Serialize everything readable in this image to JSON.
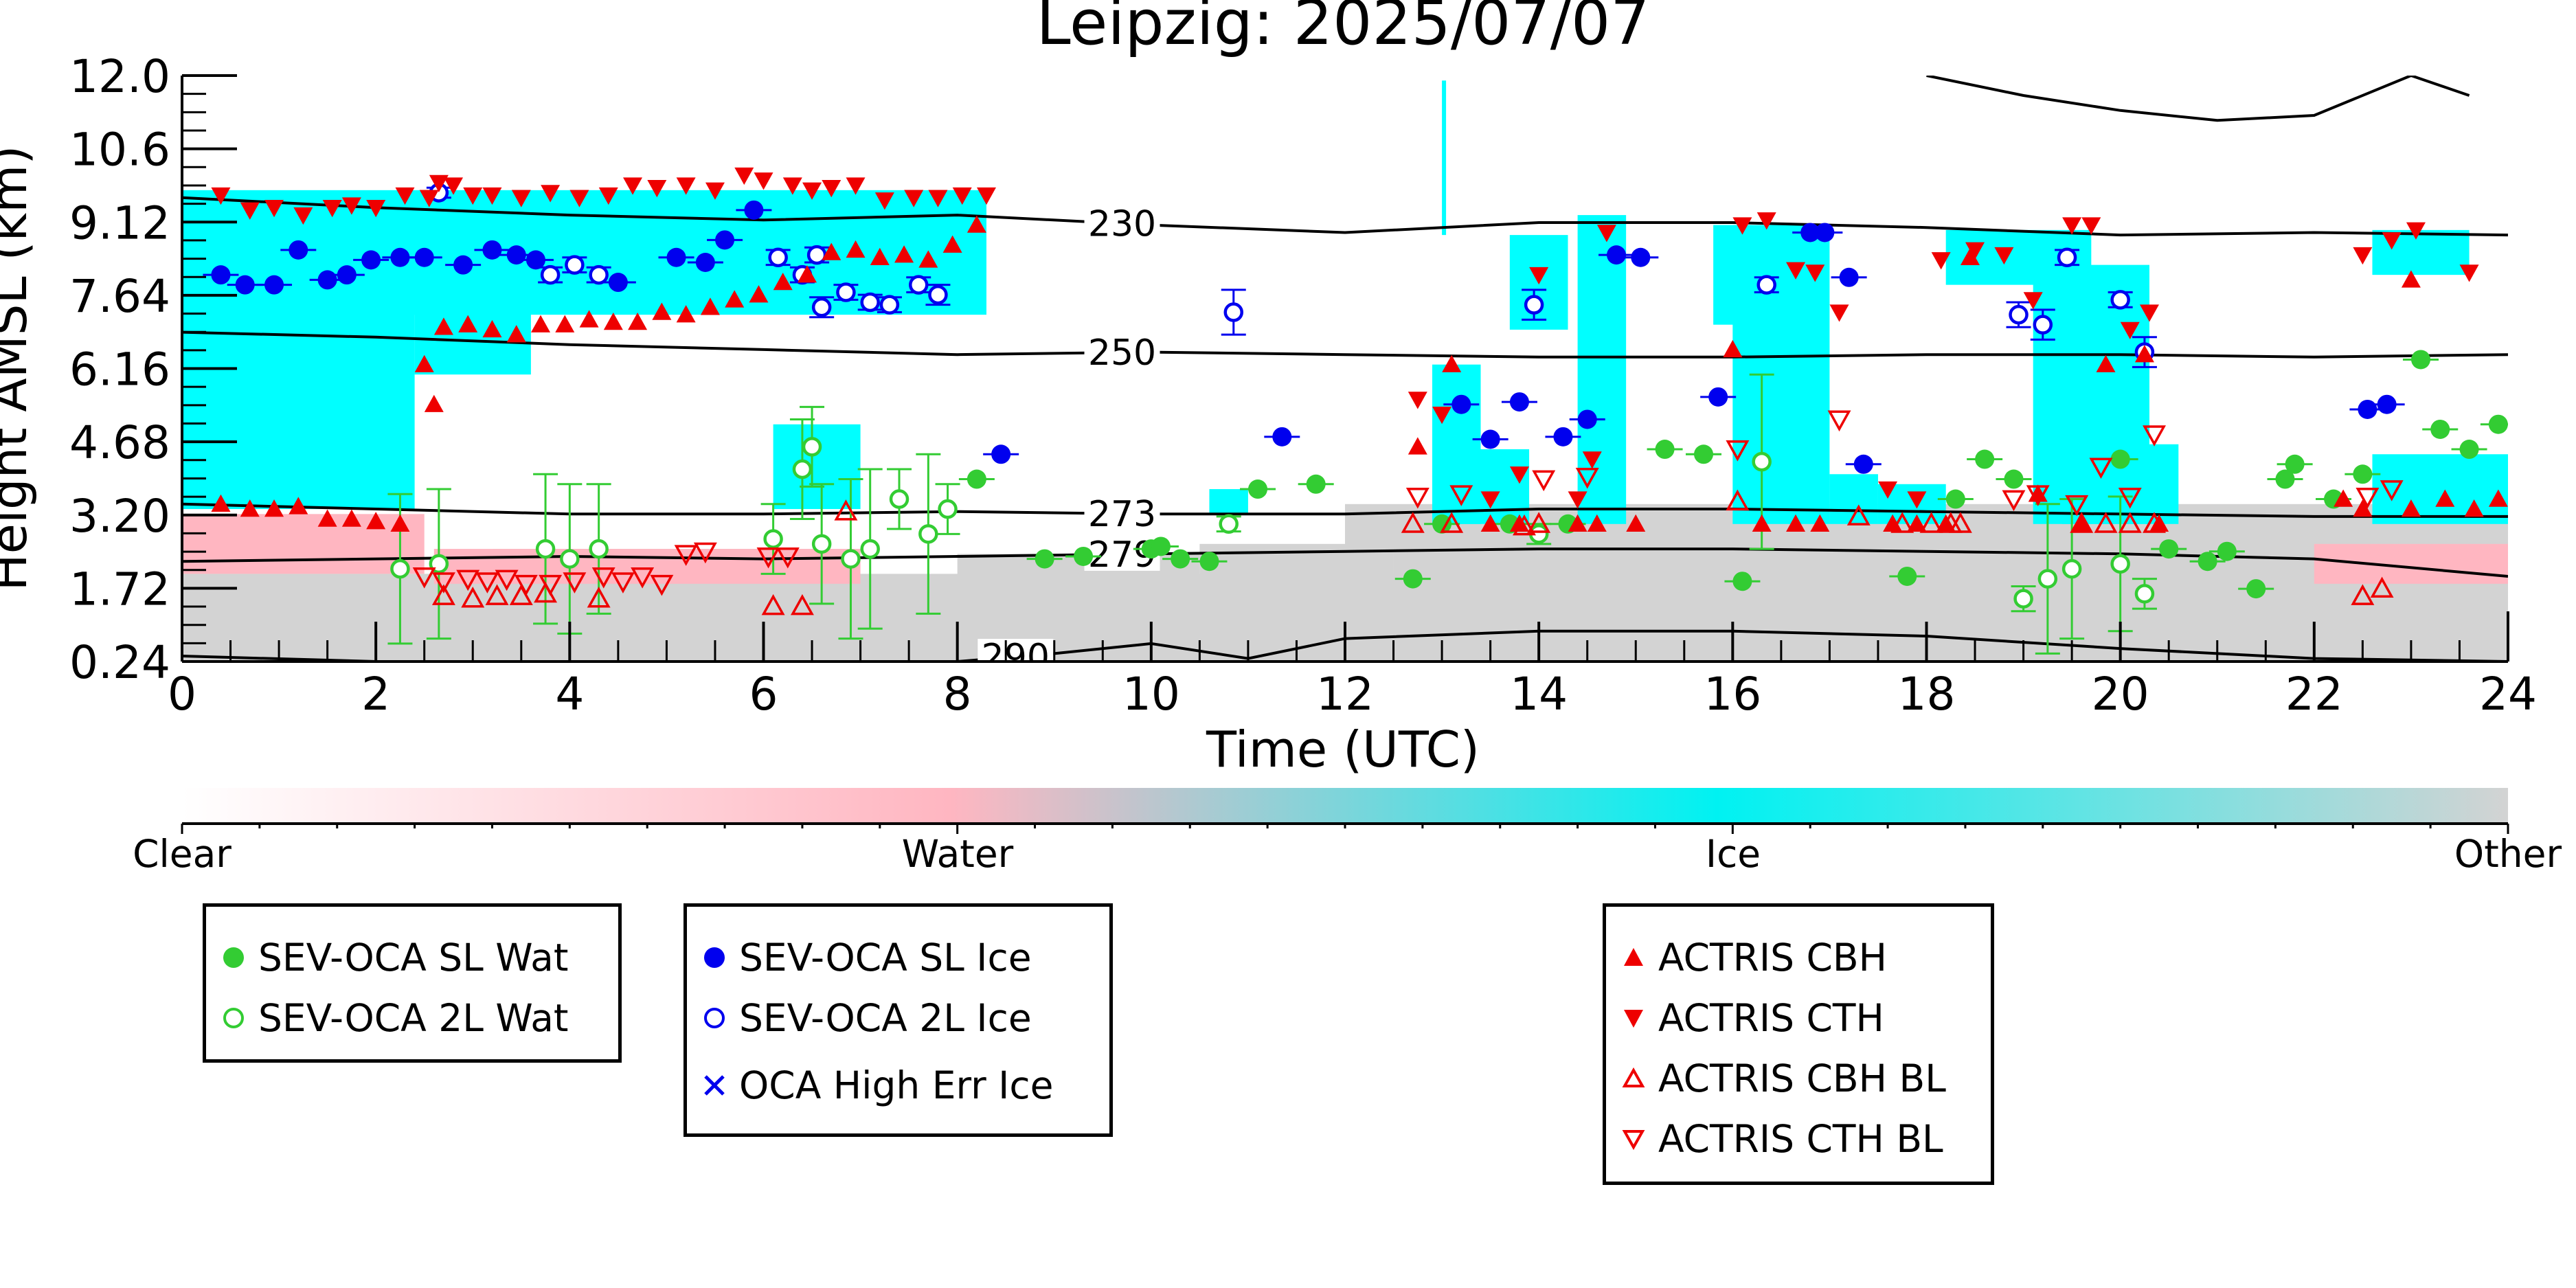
{
  "chart_data": {
    "type": "scatter",
    "title": "Leipzig: 2025/07/07",
    "xlabel": "Time (UTC)",
    "ylabel": "Height AMSL (km)",
    "xlim": [
      0,
      24
    ],
    "ylim": [
      0.24,
      12.0
    ],
    "xticks": [
      "0",
      "2",
      "4",
      "6",
      "8",
      "10",
      "12",
      "14",
      "16",
      "18",
      "20",
      "22",
      "24"
    ],
    "yticks": [
      "12.0",
      "10.6",
      "9.12",
      "7.64",
      "6.16",
      "4.68",
      "3.20",
      "1.72",
      "0.24"
    ],
    "grid": false,
    "colors": {
      "water_fill": "#ffb6c1",
      "ice_fill": "#00ffff",
      "other_fill": "#d3d3d3",
      "sev_wat": "#33cc33",
      "sev_ice": "#0000ee",
      "actris": "#ee0000"
    },
    "colorbar": {
      "labels": [
        "Clear",
        "Water",
        "Ice",
        "Other"
      ]
    },
    "isotherms": [
      {
        "label": "230",
        "x": [
          0,
          2,
          4,
          6,
          8,
          10,
          12,
          14,
          16,
          18,
          20,
          22,
          24
        ],
        "y": [
          9.55,
          9.35,
          9.2,
          9.1,
          9.2,
          9.0,
          8.85,
          9.05,
          9.05,
          8.95,
          8.8,
          8.85,
          8.8
        ]
      },
      {
        "label": "250",
        "x": [
          0,
          2,
          4,
          6,
          8,
          10,
          12,
          14,
          16,
          18,
          20,
          22,
          24
        ],
        "y": [
          6.85,
          6.75,
          6.6,
          6.5,
          6.4,
          6.45,
          6.4,
          6.35,
          6.35,
          6.4,
          6.4,
          6.35,
          6.4
        ]
      },
      {
        "label": "273",
        "x": [
          0,
          2,
          4,
          6,
          8,
          10,
          12,
          14,
          16,
          18,
          20,
          22,
          24
        ],
        "y": [
          3.4,
          3.3,
          3.2,
          3.2,
          3.25,
          3.2,
          3.2,
          3.3,
          3.3,
          3.25,
          3.2,
          3.15,
          3.15
        ]
      },
      {
        "label": "279",
        "x": [
          0,
          2,
          4,
          6,
          8,
          10,
          12,
          14,
          16,
          18,
          20,
          22,
          24
        ],
        "y": [
          2.25,
          2.3,
          2.35,
          2.3,
          2.35,
          2.4,
          2.45,
          2.5,
          2.5,
          2.45,
          2.4,
          2.3,
          1.95
        ]
      },
      {
        "label": "290",
        "x": [
          0,
          2,
          4,
          6,
          8,
          9,
          10,
          11,
          12,
          14,
          16,
          18,
          20,
          22,
          24
        ],
        "y": [
          0.35,
          0.24,
          0.24,
          0.24,
          0.24,
          0.4,
          0.6,
          0.3,
          0.7,
          0.85,
          0.85,
          0.75,
          0.5,
          0.3,
          0.24
        ]
      },
      {
        "label": "",
        "x": [
          18,
          19,
          20,
          21,
          22,
          23,
          23.6
        ],
        "y": [
          12.0,
          11.6,
          11.3,
          11.1,
          11.2,
          12.0,
          11.6
        ]
      }
    ],
    "series": [
      {
        "name": "SEV-OCA SL Wat",
        "marker": "filled-circle",
        "color": "#33cc33",
        "x": [
          8.2,
          8.9,
          9.3,
          10.0,
          10.1,
          10.3,
          10.6,
          11.1,
          11.7,
          12.7,
          13.0,
          13.7,
          14.3,
          15.3,
          15.7,
          16.1,
          17.8,
          18.3,
          18.6,
          18.9,
          20.0,
          20.5,
          20.9,
          21.1,
          21.4,
          21.7,
          21.8,
          22.2,
          22.5,
          23.1,
          23.3,
          23.6,
          23.9
        ],
        "y": [
          3.9,
          2.3,
          2.35,
          2.5,
          2.55,
          2.3,
          2.25,
          3.7,
          3.8,
          1.9,
          3.0,
          3.0,
          3.0,
          4.5,
          4.4,
          1.85,
          1.95,
          3.5,
          4.3,
          3.9,
          4.3,
          2.5,
          2.25,
          2.45,
          1.7,
          3.9,
          4.2,
          3.5,
          4.0,
          6.3,
          4.9,
          4.5,
          5.0
        ]
      },
      {
        "name": "SEV-OCA 2L Wat",
        "marker": "open-circle",
        "color": "#33cc33",
        "x": [
          2.25,
          2.65,
          3.75,
          4.0,
          4.3,
          6.1,
          6.4,
          6.5,
          6.6,
          6.9,
          7.1,
          7.4,
          7.7,
          7.9,
          10.8,
          14.0,
          16.3,
          19.0,
          19.25,
          19.5,
          20.0,
          20.25
        ],
        "y": [
          2.1,
          2.2,
          2.5,
          2.3,
          2.5,
          2.7,
          4.1,
          4.55,
          2.6,
          2.3,
          2.5,
          3.5,
          2.8,
          3.3,
          3.0,
          2.8,
          4.25,
          1.5,
          1.9,
          2.1,
          2.2,
          1.6
        ],
        "err": [
          3.0,
          3.0,
          3.0,
          3.0,
          2.6,
          1.4,
          2.0,
          1.6,
          2.4,
          3.2,
          3.2,
          1.2,
          3.2,
          1.0,
          0.3,
          0.4,
          3.5,
          0.5,
          3.0,
          2.8,
          2.7,
          0.6
        ]
      },
      {
        "name": "SEV-OCA SL Ice",
        "marker": "filled-circle",
        "color": "#0000ee",
        "x": [
          0.4,
          0.65,
          0.95,
          1.2,
          1.5,
          1.7,
          1.95,
          2.25,
          2.5,
          2.9,
          3.2,
          3.45,
          3.65,
          4.5,
          5.1,
          5.4,
          5.6,
          5.9,
          8.45,
          11.35,
          13.2,
          13.5,
          13.8,
          14.25,
          14.5,
          14.8,
          15.05,
          15.85,
          16.8,
          16.95,
          17.2,
          17.35,
          22.55,
          22.75
        ],
        "y": [
          8.0,
          7.8,
          7.8,
          8.5,
          7.9,
          8.0,
          8.3,
          8.35,
          8.35,
          8.2,
          8.5,
          8.4,
          8.3,
          7.85,
          8.35,
          8.25,
          8.7,
          9.3,
          4.4,
          4.75,
          5.4,
          4.7,
          5.45,
          4.75,
          5.1,
          8.4,
          8.35,
          5.55,
          8.85,
          8.85,
          7.95,
          4.2,
          5.3,
          5.4
        ]
      },
      {
        "name": "SEV-OCA 2L Ice",
        "marker": "open-circle",
        "color": "#0000ee",
        "x": [
          2.65,
          3.8,
          4.05,
          4.3,
          6.15,
          6.4,
          6.55,
          6.6,
          6.85,
          7.1,
          7.3,
          7.6,
          7.8,
          10.85,
          13.95,
          16.35,
          18.95,
          19.2,
          19.45,
          20.0,
          20.25
        ],
        "y": [
          9.65,
          8.0,
          8.2,
          8.0,
          8.35,
          8.0,
          8.4,
          7.35,
          7.65,
          7.45,
          7.4,
          7.8,
          7.6,
          7.25,
          7.4,
          7.8,
          7.2,
          7.0,
          8.35,
          7.5,
          6.45
        ],
        "err": [
          0.2,
          0.3,
          0.3,
          0.3,
          0.3,
          0.3,
          0.3,
          0.4,
          0.3,
          0.3,
          0.3,
          0.3,
          0.4,
          0.9,
          0.6,
          0.3,
          0.5,
          0.6,
          0.3,
          0.3,
          0.6
        ]
      },
      {
        "name": "OCA High Err Ice",
        "marker": "x",
        "color": "#0000ee",
        "x": [],
        "y": []
      },
      {
        "name": "ACTRIS CBH",
        "marker": "filled-triangle-up",
        "color": "#ee0000",
        "x": [
          0.4,
          0.7,
          0.95,
          1.2,
          1.5,
          1.75,
          2.0,
          2.25,
          2.5,
          2.6,
          2.7,
          2.95,
          3.2,
          3.45,
          3.7,
          3.95,
          4.2,
          4.45,
          4.7,
          4.95,
          5.2,
          5.45,
          5.7,
          5.95,
          6.2,
          6.45,
          6.7,
          6.95,
          7.2,
          7.45,
          7.7,
          7.95,
          8.2,
          12.75,
          13.1,
          13.5,
          13.8,
          14.4,
          14.6,
          15.0,
          16.0,
          16.3,
          16.65,
          16.9,
          17.65,
          17.9,
          18.2,
          18.45,
          19.15,
          19.6,
          19.85,
          20.25,
          20.4,
          22.3,
          22.5,
          23.0,
          23.35,
          23.65,
          23.9,
          23.0
        ],
        "y": [
          3.4,
          3.3,
          3.3,
          3.35,
          3.1,
          3.1,
          3.05,
          3.0,
          6.2,
          5.4,
          6.95,
          7.0,
          6.9,
          6.8,
          7.0,
          7.0,
          7.1,
          7.05,
          7.05,
          7.25,
          7.2,
          7.35,
          7.5,
          7.6,
          7.85,
          8.0,
          8.45,
          8.5,
          8.35,
          8.4,
          8.3,
          8.6,
          9.0,
          4.55,
          6.2,
          3.0,
          3.0,
          3.0,
          3.0,
          3.0,
          6.5,
          3.0,
          3.0,
          3.0,
          3.0,
          3.0,
          3.0,
          8.35,
          3.6,
          3.0,
          6.2,
          6.4,
          3.0,
          3.5,
          3.3,
          7.9,
          3.5,
          3.3,
          3.5,
          3.3
        ]
      },
      {
        "name": "ACTRIS CTH",
        "marker": "filled-triangle-down",
        "color": "#ee0000",
        "x": [
          0.4,
          0.7,
          0.95,
          1.25,
          1.55,
          1.75,
          2.0,
          2.3,
          2.55,
          2.65,
          2.8,
          3.0,
          3.2,
          3.5,
          3.8,
          4.1,
          4.4,
          4.65,
          4.9,
          5.2,
          5.5,
          5.8,
          6.0,
          6.3,
          6.5,
          6.7,
          6.95,
          7.25,
          7.55,
          7.8,
          8.05,
          8.3,
          12.75,
          13.0,
          13.5,
          13.8,
          14.0,
          14.4,
          14.55,
          14.7,
          16.1,
          16.35,
          16.65,
          16.85,
          17.1,
          17.6,
          17.9,
          18.15,
          18.5,
          18.8,
          19.1,
          19.5,
          19.7,
          20.1,
          20.3,
          22.5,
          22.8,
          23.05,
          23.6
        ],
        "y": [
          9.6,
          9.3,
          9.35,
          9.2,
          9.35,
          9.4,
          9.35,
          9.6,
          9.55,
          9.85,
          9.8,
          9.6,
          9.6,
          9.55,
          9.65,
          9.55,
          9.6,
          9.8,
          9.75,
          9.8,
          9.7,
          10.0,
          9.9,
          9.8,
          9.7,
          9.75,
          9.8,
          9.5,
          9.55,
          9.55,
          9.6,
          9.6,
          5.5,
          5.2,
          3.5,
          4.0,
          8.0,
          3.5,
          4.3,
          8.85,
          9.0,
          9.1,
          8.1,
          8.05,
          7.25,
          3.7,
          3.5,
          8.3,
          8.5,
          8.4,
          7.5,
          9.0,
          9.0,
          6.9,
          7.25,
          8.4,
          8.7,
          8.9,
          8.05
        ]
      },
      {
        "name": "ACTRIS CBH BL",
        "marker": "open-triangle-up",
        "color": "#ee0000",
        "x": [
          2.7,
          3.0,
          3.25,
          3.5,
          3.75,
          4.3,
          6.1,
          6.4,
          6.85,
          12.7,
          13.1,
          13.85,
          14.0,
          16.05,
          17.3,
          17.75,
          18.05,
          18.25,
          18.35,
          19.6,
          19.85,
          20.1,
          20.35,
          22.5,
          22.7
        ],
        "y": [
          1.55,
          1.5,
          1.55,
          1.55,
          1.6,
          1.5,
          1.35,
          1.35,
          3.25,
          3.0,
          3.0,
          2.95,
          3.0,
          3.45,
          3.15,
          3.0,
          3.0,
          3.0,
          3.0,
          3.0,
          3.0,
          3.0,
          3.0,
          1.55,
          1.7
        ]
      },
      {
        "name": "ACTRIS CTH BL",
        "marker": "open-triangle-down",
        "color": "#ee0000",
        "x": [
          2.5,
          2.7,
          2.95,
          3.15,
          3.35,
          3.55,
          3.8,
          4.05,
          4.35,
          4.55,
          4.75,
          4.95,
          5.2,
          5.4,
          6.05,
          6.25,
          12.75,
          13.2,
          14.05,
          14.5,
          16.05,
          17.1,
          18.9,
          19.15,
          19.55,
          19.8,
          20.1,
          20.35,
          22.55,
          22.8
        ],
        "y": [
          1.95,
          1.85,
          1.9,
          1.85,
          1.9,
          1.8,
          1.8,
          1.85,
          1.95,
          1.85,
          1.95,
          1.8,
          2.4,
          2.45,
          2.35,
          2.35,
          3.55,
          3.6,
          3.9,
          3.95,
          4.5,
          5.1,
          3.5,
          3.6,
          3.4,
          4.15,
          3.55,
          4.8,
          3.55,
          3.7
        ]
      }
    ]
  }
}
